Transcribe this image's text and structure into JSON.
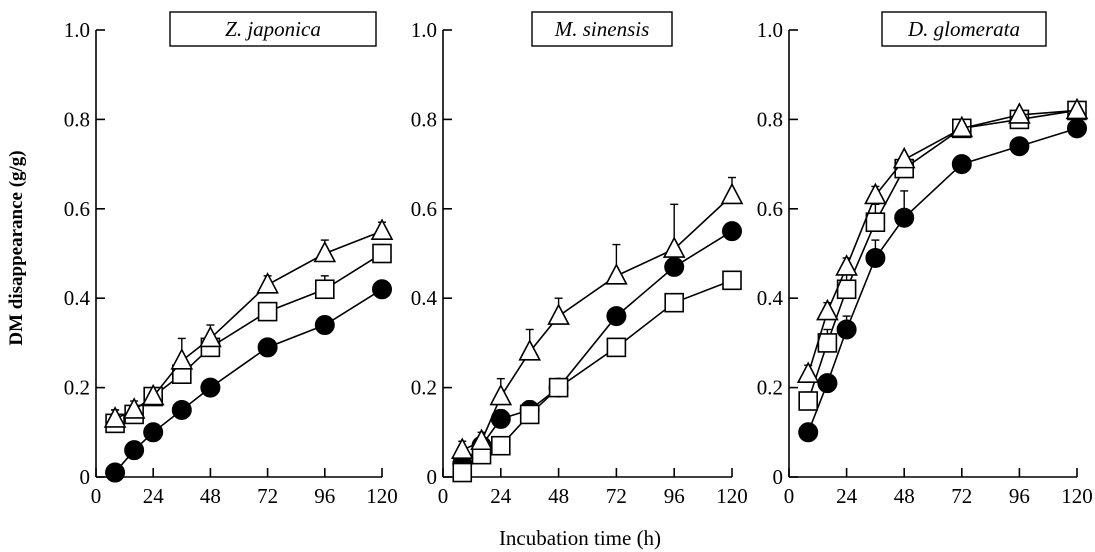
{
  "figure": {
    "ylabel": "DM disappearance (g/g)",
    "xlabel": "Incubation time (h)"
  },
  "colors": {
    "ink": "#000000",
    "background": "#ffffff"
  },
  "chart_data": [
    {
      "type": "line",
      "title": "Z. japonica",
      "xlim": [
        0,
        120
      ],
      "ylim": [
        0,
        1.0
      ],
      "xticks": [
        0,
        24,
        48,
        72,
        96,
        120
      ],
      "xtick_labels": [
        "0",
        "24",
        "48",
        "72",
        "96",
        "120"
      ],
      "yticks": [
        0,
        0.2,
        0.4,
        0.6,
        0.8,
        1.0
      ],
      "ytick_labels": [
        "0",
        "0.2",
        "0.4",
        "0.6",
        "0.8",
        "1.0"
      ],
      "x": [
        8,
        16,
        24,
        36,
        48,
        72,
        96,
        120
      ],
      "series": [
        {
          "marker": "triangle",
          "values": [
            0.13,
            0.15,
            0.18,
            0.26,
            0.31,
            0.43,
            0.5,
            0.55
          ],
          "errors": [
            0.02,
            0.02,
            0.01,
            0.05,
            0.03,
            0.02,
            0.03,
            0.02
          ]
        },
        {
          "marker": "square",
          "values": [
            0.12,
            0.14,
            0.18,
            0.23,
            0.29,
            0.37,
            0.42,
            0.5
          ],
          "errors": [
            0.03,
            0.02,
            0.01,
            0.02,
            0.02,
            0.01,
            0.03,
            0.02
          ]
        },
        {
          "marker": "circle",
          "values": [
            0.01,
            0.06,
            0.1,
            0.15,
            0.2,
            0.29,
            0.34,
            0.42
          ],
          "errors": [
            0,
            0,
            0,
            0,
            0,
            0,
            0,
            0
          ]
        }
      ]
    },
    {
      "type": "line",
      "title": "M. sinensis",
      "xlim": [
        0,
        120
      ],
      "ylim": [
        0,
        1.0
      ],
      "xticks": [
        0,
        24,
        48,
        72,
        96,
        120
      ],
      "xtick_labels": [
        "0",
        "24",
        "48",
        "72",
        "96",
        "120"
      ],
      "yticks": [
        0,
        0.2,
        0.4,
        0.6,
        0.8,
        1.0
      ],
      "ytick_labels": [
        "0",
        "0.2",
        "0.4",
        "0.6",
        "0.8",
        "1.0"
      ],
      "x": [
        8,
        16,
        24,
        36,
        48,
        72,
        96,
        120
      ],
      "series": [
        {
          "marker": "triangle",
          "values": [
            0.06,
            0.08,
            0.18,
            0.28,
            0.36,
            0.45,
            0.51,
            0.63
          ],
          "errors": [
            0.02,
            0.02,
            0.04,
            0.05,
            0.04,
            0.07,
            0.1,
            0.04
          ]
        },
        {
          "marker": "square",
          "values": [
            0.01,
            0.05,
            0.07,
            0.14,
            0.2,
            0.29,
            0.39,
            0.44
          ],
          "errors": [
            0.03,
            0.02,
            0.02,
            0.02,
            0.01,
            0.01,
            0.01,
            0.01
          ]
        },
        {
          "marker": "circle",
          "values": [
            0.03,
            0.07,
            0.13,
            0.15,
            0.2,
            0.36,
            0.47,
            0.55
          ],
          "errors": [
            0.01,
            0.01,
            0.02,
            0.02,
            0.01,
            0.01,
            0.01,
            0.01
          ]
        }
      ]
    },
    {
      "type": "line",
      "title": "D. glomerata",
      "xlim": [
        0,
        120
      ],
      "ylim": [
        0,
        1.0
      ],
      "xticks": [
        0,
        24,
        48,
        72,
        96,
        120
      ],
      "xtick_labels": [
        "0",
        "24",
        "48",
        "72",
        "96",
        "120"
      ],
      "yticks": [
        0,
        0.2,
        0.4,
        0.6,
        0.8,
        1.0
      ],
      "ytick_labels": [
        "0",
        "0.2",
        "0.4",
        "0.6",
        "0.8",
        "1.0"
      ],
      "x": [
        8,
        16,
        24,
        36,
        48,
        72,
        96,
        120
      ],
      "series": [
        {
          "marker": "triangle",
          "values": [
            0.23,
            0.37,
            0.47,
            0.63,
            0.71,
            0.78,
            0.81,
            0.82
          ],
          "errors": [
            0.02,
            0.02,
            0.02,
            0.02,
            0.01,
            0.01,
            0.01,
            0.01
          ]
        },
        {
          "marker": "square",
          "values": [
            0.17,
            0.3,
            0.42,
            0.57,
            0.69,
            0.78,
            0.8,
            0.82
          ],
          "errors": [
            0.02,
            0.03,
            0.04,
            0.04,
            0.03,
            0.01,
            0.01,
            0.01
          ]
        },
        {
          "marker": "circle",
          "values": [
            0.1,
            0.21,
            0.33,
            0.49,
            0.58,
            0.7,
            0.74,
            0.78
          ],
          "errors": [
            0.0,
            0.0,
            0.03,
            0.04,
            0.06,
            0.01,
            0.01,
            0.01
          ]
        }
      ]
    }
  ]
}
